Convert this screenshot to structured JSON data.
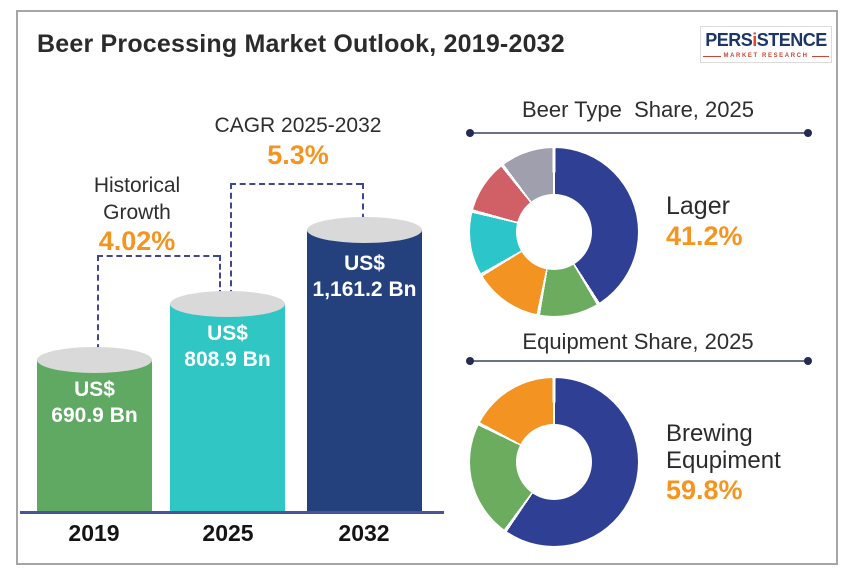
{
  "header": {
    "title": "Beer Processing Market Outlook, 2019-2032",
    "logo": {
      "brand_pre": "PERS",
      "brand_i": "i",
      "brand_post": "STENCE",
      "subtitle": "MARKET RESEARCH"
    }
  },
  "bar_section": {
    "historical": {
      "label_line1": "Historical",
      "label_line2": "Growth",
      "value": "4.02%"
    },
    "cagr": {
      "label": "CAGR 2025-2032",
      "value": "5.3%"
    },
    "bars": [
      {
        "year": "2019",
        "line1": "US$",
        "line2": "690.9 Bn"
      },
      {
        "year": "2025",
        "line1": "US$",
        "line2": "808.9 Bn"
      },
      {
        "year": "2032",
        "line1": "US$",
        "line2": "1,161.2 Bn"
      }
    ]
  },
  "donut_beer_type": {
    "title": "Beer Type  Share, 2025",
    "callout_label": "Lager",
    "callout_value": "41.2%"
  },
  "donut_equipment": {
    "title": "Equipment Share, 2025",
    "callout_label_line1": "Brewing",
    "callout_label_line2": "Equpiment",
    "callout_value": "59.8%"
  },
  "colors": {
    "accent_orange": "#f5941f",
    "bar_green": "#5fa963",
    "bar_teal": "#2fc6c3",
    "bar_navy": "#24417e",
    "dash_line": "#3f4795",
    "donut_navy": "#2e3f94",
    "donut_green": "#6bac5e",
    "donut_orange": "#f39322",
    "donut_teal": "#2cc5c9",
    "donut_red": "#d15f66",
    "donut_gray": "#a09fae"
  },
  "chart_data": [
    {
      "type": "bar",
      "title": "Beer Processing Market Outlook, 2019-2032",
      "categories": [
        "2019",
        "2025",
        "2032"
      ],
      "values": [
        690.9,
        808.9,
        1161.2
      ],
      "unit": "US$ Bn",
      "bar_colors": [
        "#5fa963",
        "#2fc6c3",
        "#24417e"
      ],
      "annotations": [
        {
          "label": "Historical Growth",
          "value_pct": 4.02,
          "between": [
            "2019",
            "2025"
          ]
        },
        {
          "label": "CAGR 2025-2032",
          "value_pct": 5.3,
          "between": [
            "2025",
            "2032"
          ]
        }
      ]
    },
    {
      "type": "pie",
      "donut": true,
      "title": "Beer Type Share, 2025",
      "segments": [
        {
          "label": "Lager",
          "value_pct": 41.2,
          "color": "#2e3f94"
        },
        {
          "label": "",
          "value_pct": 11.8,
          "color": "#6bac5e"
        },
        {
          "label": "",
          "value_pct": 13.5,
          "color": "#f39322"
        },
        {
          "label": "",
          "value_pct": 12.5,
          "color": "#2cc5c9"
        },
        {
          "label": "",
          "value_pct": 10.5,
          "color": "#d15f66"
        },
        {
          "label": "",
          "value_pct": 10.5,
          "color": "#a09fae"
        }
      ],
      "callout": {
        "label": "Lager",
        "value_pct": 41.2
      }
    },
    {
      "type": "pie",
      "donut": true,
      "title": "Equipment Share, 2025",
      "segments": [
        {
          "label": "Brewing Equpiment",
          "value_pct": 59.8,
          "color": "#2e3f94"
        },
        {
          "label": "",
          "value_pct": 22.7,
          "color": "#6bac5e"
        },
        {
          "label": "",
          "value_pct": 17.5,
          "color": "#f39322"
        }
      ],
      "callout": {
        "label": "Brewing Equpiment",
        "value_pct": 59.8
      }
    }
  ]
}
